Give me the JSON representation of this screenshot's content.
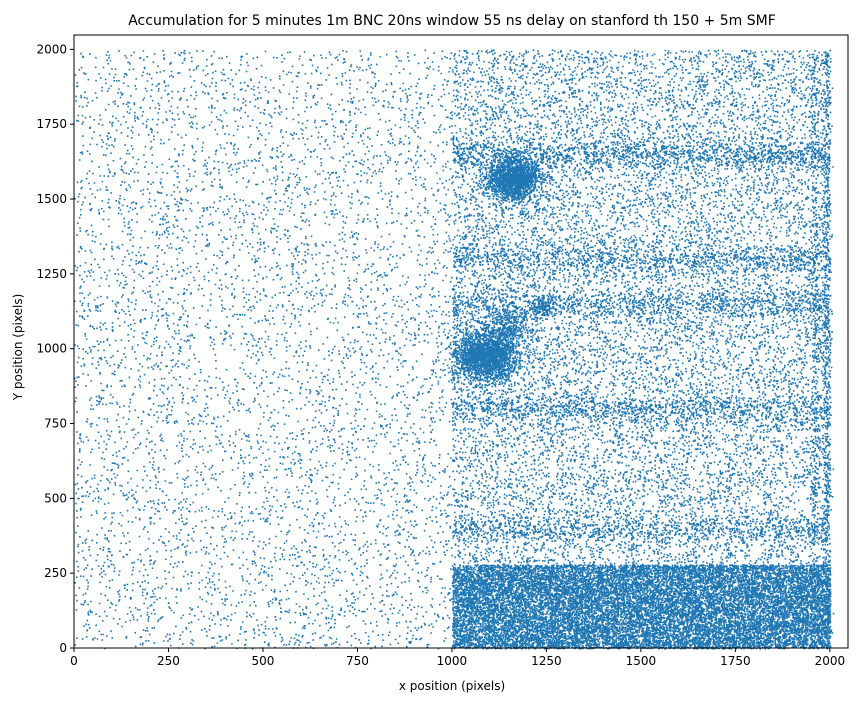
{
  "chart_data": {
    "type": "scatter",
    "title": "Accumulation for 5 minutes 1m BNC 20ns window 55 ns delay on stanford th 150 + 5m SMF",
    "xlabel": "x position (pixels)",
    "ylabel": "Y position (pixels)",
    "xlim": [
      0,
      2048
    ],
    "ylim": [
      0,
      2048
    ],
    "xticks": [
      0,
      250,
      500,
      750,
      1000,
      1250,
      1500,
      1750,
      2000
    ],
    "yticks": [
      0,
      250,
      500,
      750,
      1000,
      1250,
      1500,
      1750,
      2000
    ],
    "grid": false,
    "marker_color": "#1f77b4",
    "point_density": [
      {
        "x_range": [
          0,
          1000
        ],
        "y_range": [
          0,
          2000
        ],
        "count": 6000
      },
      {
        "x_range": [
          1000,
          2000
        ],
        "y_range": [
          0,
          2000
        ],
        "count": 16000
      },
      {
        "x_range": [
          1000,
          2000
        ],
        "y_range": [
          0,
          280
        ],
        "count": 16000
      },
      {
        "center": [
          1160,
          1570
        ],
        "radius": 70,
        "count": 1800
      },
      {
        "center": [
          1090,
          980
        ],
        "radius": 85,
        "count": 2200
      },
      {
        "center": [
          1150,
          1080
        ],
        "radius": 60,
        "count": 300
      },
      {
        "center": [
          1240,
          1140
        ],
        "radius": 40,
        "count": 150
      }
    ],
    "horizontal_bands": [
      {
        "y": 1650,
        "x_range": [
          1000,
          2000
        ],
        "count": 1200
      },
      {
        "y": 1300,
        "x_range": [
          1000,
          2000
        ],
        "count": 1000
      },
      {
        "y": 1150,
        "x_range": [
          1000,
          2000
        ],
        "count": 900
      },
      {
        "y": 800,
        "x_range": [
          1000,
          2000
        ],
        "count": 1000
      },
      {
        "y": 400,
        "x_range": [
          1000,
          2000
        ],
        "count": 800
      }
    ],
    "vertical_bands": [
      {
        "x": 1990,
        "y_range": [
          0,
          2000
        ],
        "count": 700
      },
      {
        "x": 1960,
        "y_range": [
          0,
          2000
        ],
        "count": 400
      }
    ]
  }
}
